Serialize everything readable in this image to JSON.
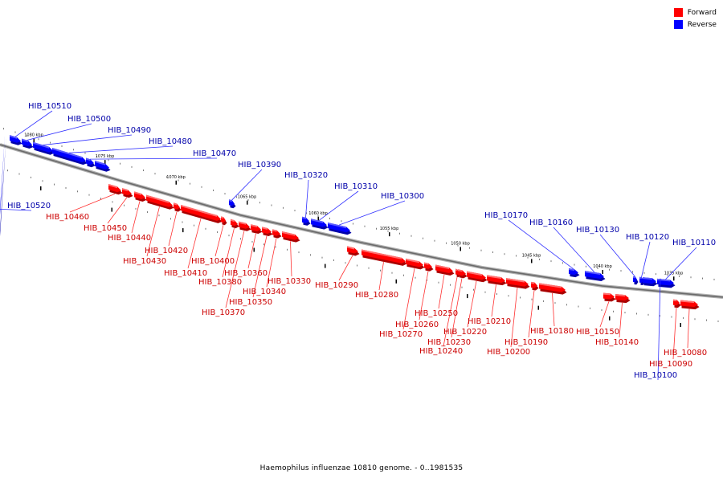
{
  "title": "Haemophilus influenzae 10810 genome. - 0..1981535",
  "legend": [
    {
      "label": "Forward",
      "color": "#ff0000"
    },
    {
      "label": "Reverse",
      "color": "#0000ff"
    }
  ],
  "colors": {
    "forward": "#ff0000",
    "reverse": "#0000ff",
    "forward_label": "#cc0000",
    "reverse_label": "#0000aa",
    "backbone": "#888888"
  },
  "scale_labels": [
    {
      "text": "1080 kbp",
      "kbp": 1080
    },
    {
      "text": "1075 kbp",
      "kbp": 1075
    },
    {
      "text": "1070 kbp",
      "kbp": 1070
    },
    {
      "text": "1065 kbp",
      "kbp": 1065
    },
    {
      "text": "1060 kbp",
      "kbp": 1060
    },
    {
      "text": "1055 kbp",
      "kbp": 1055
    },
    {
      "text": "1050 kbp",
      "kbp": 1050
    },
    {
      "text": "1045 kbp",
      "kbp": 1045
    },
    {
      "text": "1040 kbp",
      "kbp": 1040
    },
    {
      "text": "1035 kbp",
      "kbp": 1035
    }
  ],
  "genes": [
    {
      "name": "HIB_10520",
      "strand": "reverse"
    },
    {
      "name": "HIB_10510",
      "strand": "reverse"
    },
    {
      "name": "HIB_10500",
      "strand": "reverse"
    },
    {
      "name": "HIB_10490",
      "strand": "reverse"
    },
    {
      "name": "HIB_10480",
      "strand": "reverse"
    },
    {
      "name": "HIB_10470",
      "strand": "reverse"
    },
    {
      "name": "HIB_10460",
      "strand": "forward"
    },
    {
      "name": "HIB_10450",
      "strand": "forward"
    },
    {
      "name": "HIB_10440",
      "strand": "forward"
    },
    {
      "name": "HIB_10430",
      "strand": "forward"
    },
    {
      "name": "HIB_10420",
      "strand": "forward"
    },
    {
      "name": "HIB_10410",
      "strand": "forward"
    },
    {
      "name": "HIB_10400",
      "strand": "forward"
    },
    {
      "name": "HIB_10390",
      "strand": "reverse"
    },
    {
      "name": "HIB_10380",
      "strand": "forward"
    },
    {
      "name": "HIB_10370",
      "strand": "forward"
    },
    {
      "name": "HIB_10360",
      "strand": "forward"
    },
    {
      "name": "HIB_10350",
      "strand": "forward"
    },
    {
      "name": "HIB_10340",
      "strand": "forward"
    },
    {
      "name": "HIB_10330",
      "strand": "forward"
    },
    {
      "name": "HIB_10320",
      "strand": "reverse"
    },
    {
      "name": "HIB_10310",
      "strand": "reverse"
    },
    {
      "name": "HIB_10300",
      "strand": "reverse"
    },
    {
      "name": "HIB_10290",
      "strand": "forward"
    },
    {
      "name": "HIB_10280",
      "strand": "forward"
    },
    {
      "name": "HIB_10270",
      "strand": "forward"
    },
    {
      "name": "HIB_10260",
      "strand": "forward"
    },
    {
      "name": "HIB_10250",
      "strand": "forward"
    },
    {
      "name": "HIB_10240",
      "strand": "forward"
    },
    {
      "name": "HIB_10230",
      "strand": "forward"
    },
    {
      "name": "HIB_10220",
      "strand": "forward"
    },
    {
      "name": "HIB_10210",
      "strand": "forward"
    },
    {
      "name": "HIB_10200",
      "strand": "forward"
    },
    {
      "name": "HIB_10190",
      "strand": "forward"
    },
    {
      "name": "HIB_10180",
      "strand": "forward"
    },
    {
      "name": "HIB_10170",
      "strand": "reverse"
    },
    {
      "name": "HIB_10160",
      "strand": "reverse"
    },
    {
      "name": "HIB_10150",
      "strand": "forward"
    },
    {
      "name": "HIB_10140",
      "strand": "forward"
    },
    {
      "name": "HIB_10130",
      "strand": "reverse"
    },
    {
      "name": "HIB_10120",
      "strand": "reverse"
    },
    {
      "name": "HIB_10110",
      "strand": "reverse"
    },
    {
      "name": "HIB_10100",
      "strand": "reverse"
    },
    {
      "name": "HIB_10090",
      "strand": "forward"
    },
    {
      "name": "HIB_10080",
      "strand": "forward"
    }
  ]
}
